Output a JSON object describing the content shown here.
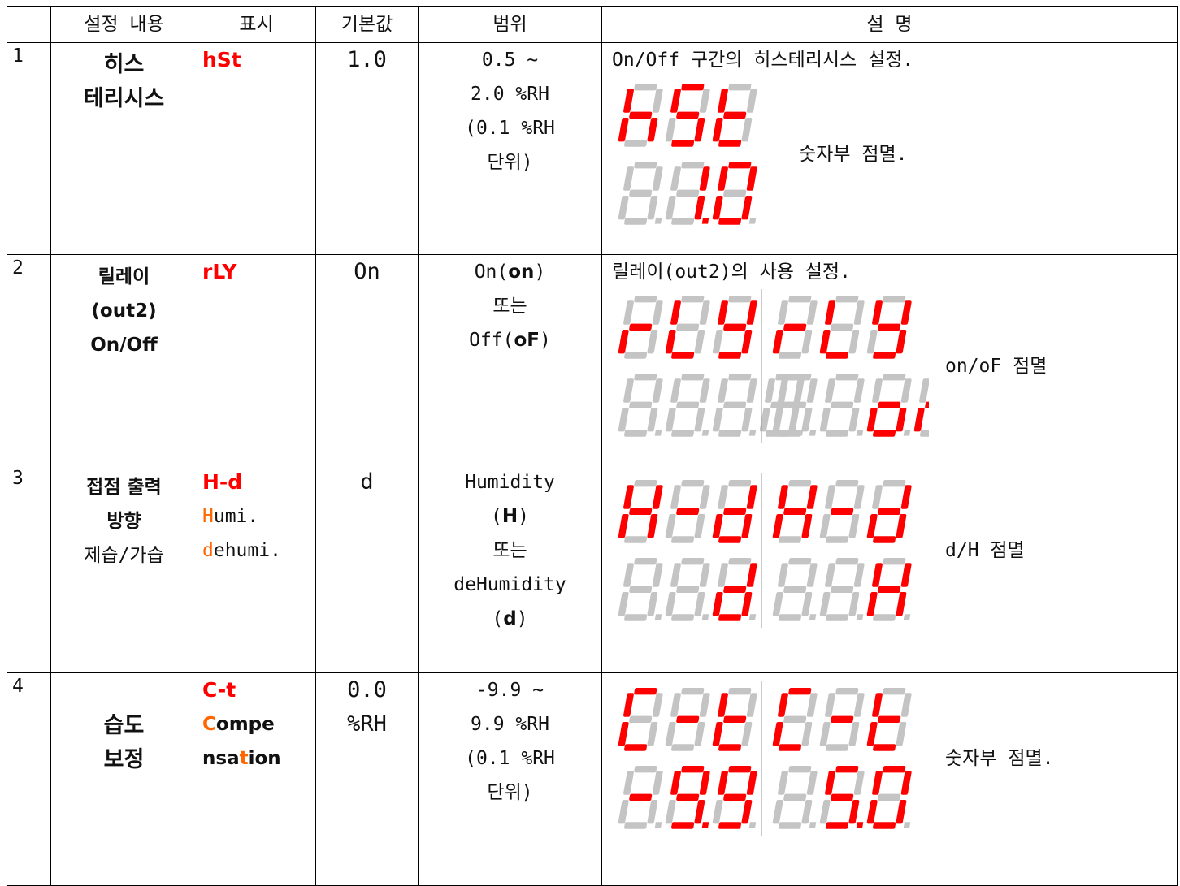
{
  "header": [
    "설정 내용",
    "표시",
    "기본값",
    "범위",
    "설 명"
  ],
  "rows": [
    {
      "no": "1",
      "name": [
        "히스",
        "테리시스"
      ],
      "display": [
        [
          "hSt"
        ]
      ],
      "default": [
        "1.0"
      ],
      "range": [
        [
          "0.5 ~"
        ],
        [
          "2.0 %RH"
        ],
        [
          "(0.1 %RH"
        ],
        [
          "단위)"
        ]
      ],
      "description": "On/Off 구간의 히스테리시스 설정.",
      "blink": "숫자부 점멸."
    },
    {
      "no": "2",
      "name": [
        "릴레이",
        "(out2)",
        "On/Off"
      ],
      "display": [
        [
          "rLY"
        ]
      ],
      "default": [
        "On"
      ],
      "range": [
        [
          "On(",
          "on",
          ")"
        ],
        [
          "또는"
        ],
        [
          "Off(",
          "oF",
          ")"
        ]
      ],
      "description": "릴레이(out2)의 사용 설정.",
      "blink": "on/oF 점멸"
    },
    {
      "no": "3",
      "name": [
        "접점 출력",
        "방향",
        "제습/가습"
      ],
      "display": [
        [
          "H-d"
        ],
        [
          "H",
          "umi."
        ],
        [
          "d",
          "ehumi."
        ]
      ],
      "default": [
        "d"
      ],
      "range": [
        [
          "Humidity"
        ],
        [
          "(",
          "H",
          ")"
        ],
        [
          "또는"
        ],
        [
          "deHumidity"
        ],
        [
          "(",
          "d",
          ")"
        ]
      ],
      "blink": "d/H 점멸"
    },
    {
      "no": "4",
      "name": [
        "습도",
        "보정"
      ],
      "display": [
        [
          "C-t"
        ],
        [
          "C",
          "ompe"
        ],
        [
          "nsa",
          "t",
          "ion"
        ]
      ],
      "default": [
        "0.0",
        "%RH"
      ],
      "range": [
        [
          "-9.9 ~"
        ],
        [
          "9.9 %RH"
        ],
        [
          "(0.1 %RH"
        ],
        [
          "단위)"
        ]
      ],
      "blink": "숫자부 점멸."
    }
  ]
}
